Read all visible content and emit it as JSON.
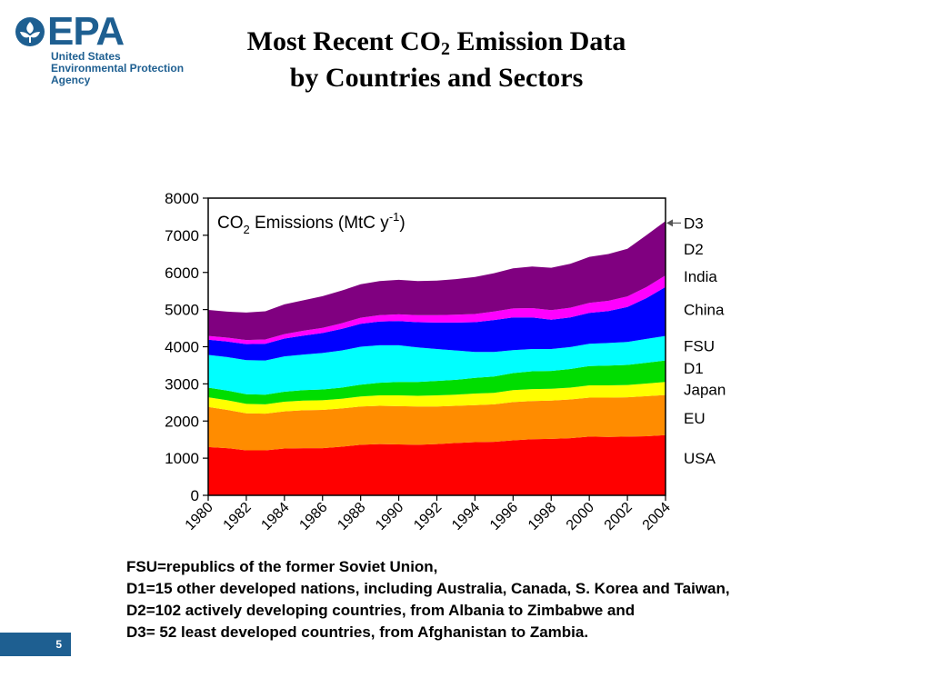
{
  "logo": {
    "wordmark": "EPA",
    "line1": "United States",
    "line2": "Environmental Protection",
    "line3": "Agency",
    "color": "#1e5f91"
  },
  "slide": {
    "title_line1_pre": "Most Recent CO",
    "title_line1_sub": "2",
    "title_line1_post": " Emission Data",
    "title_line2": "by Countries and Sectors",
    "page_number": "5"
  },
  "notes": [
    "FSU=republics of the former Soviet Union,",
    "D1=15 other developed nations, including Australia, Canada, S. Korea and Taiwan,",
    "D2=102 actively developing countries, from Albania to Zimbabwe and",
    "D3= 52 least developed countries, from Afghanistan to Zambia."
  ],
  "chart_data": {
    "type": "area",
    "stacked": true,
    "title_main": "CO",
    "title_sub": "2",
    "title_rest": " Emissions (MtC y",
    "title_sup": "-1",
    "title_end": ")",
    "ylim": [
      0,
      8000
    ],
    "xlim": [
      1980,
      2004
    ],
    "yticks": [
      "0",
      "1000",
      "2000",
      "3000",
      "4000",
      "5000",
      "6000",
      "7000",
      "8000"
    ],
    "xticks": [
      "1980",
      "1982",
      "1984",
      "1986",
      "1988",
      "1990",
      "1992",
      "1994",
      "1996",
      "1998",
      "2000",
      "2002",
      "2004"
    ],
    "x": [
      1980,
      1981,
      1982,
      1983,
      1984,
      1985,
      1986,
      1987,
      1988,
      1989,
      1990,
      1991,
      1992,
      1993,
      1994,
      1995,
      1996,
      1997,
      1998,
      1999,
      2000,
      2001,
      2002,
      2003,
      2004
    ],
    "series": [
      {
        "name": "USA",
        "color": "#ff0000",
        "values": [
          1300,
          1270,
          1210,
          1210,
          1260,
          1270,
          1270,
          1310,
          1360,
          1380,
          1370,
          1360,
          1380,
          1410,
          1430,
          1440,
          1480,
          1510,
          1520,
          1540,
          1580,
          1570,
          1580,
          1590,
          1620
        ]
      },
      {
        "name": "EU",
        "color": "#ff8c00",
        "values": [
          1080,
          1030,
          1000,
          990,
          1000,
          1020,
          1030,
          1030,
          1030,
          1030,
          1030,
          1030,
          1010,
          1000,
          1000,
          1010,
          1030,
          1030,
          1030,
          1040,
          1050,
          1060,
          1060,
          1080,
          1080
        ]
      },
      {
        "name": "Japan",
        "color": "#ffff00",
        "values": [
          260,
          260,
          250,
          250,
          260,
          260,
          260,
          260,
          270,
          280,
          290,
          290,
          300,
          300,
          310,
          310,
          320,
          320,
          320,
          320,
          330,
          330,
          330,
          340,
          350
        ]
      },
      {
        "name": "D1",
        "color": "#00dd00",
        "values": [
          260,
          260,
          260,
          260,
          270,
          280,
          290,
          300,
          320,
          340,
          360,
          370,
          390,
          400,
          420,
          440,
          460,
          480,
          480,
          500,
          520,
          530,
          540,
          560,
          580
        ]
      },
      {
        "name": "FSU",
        "color": "#00ffff",
        "values": [
          880,
          900,
          920,
          920,
          950,
          960,
          980,
          1000,
          1020,
          1010,
          990,
          930,
          860,
          790,
          700,
          660,
          620,
          600,
          590,
          590,
          600,
          610,
          620,
          640,
          660
        ]
      },
      {
        "name": "China",
        "color": "#0000ff",
        "values": [
          410,
          420,
          430,
          450,
          480,
          510,
          540,
          580,
          620,
          640,
          650,
          680,
          710,
          750,
          800,
          860,
          880,
          850,
          790,
          800,
          830,
          860,
          940,
          1100,
          1320
        ]
      },
      {
        "name": "India",
        "color": "#ff00ff",
        "values": [
          100,
          105,
          110,
          115,
          120,
          130,
          140,
          150,
          160,
          170,
          180,
          190,
          200,
          210,
          220,
          230,
          240,
          250,
          255,
          260,
          270,
          275,
          285,
          295,
          310
        ]
      },
      {
        "name": "D2",
        "color": "#800080",
        "values": [
          700,
          700,
          740,
          760,
          800,
          820,
          850,
          880,
          900,
          920,
          930,
          920,
          930,
          960,
          1000,
          1030,
          1080,
          1120,
          1140,
          1180,
          1240,
          1260,
          1280,
          1400,
          1460
        ]
      },
      {
        "name": "D3",
        "color": "#800080",
        "values": [
          0,
          0,
          0,
          0,
          0,
          0,
          0,
          0,
          0,
          0,
          0,
          0,
          0,
          0,
          0,
          0,
          0,
          0,
          0,
          0,
          0,
          0,
          0,
          0,
          0
        ]
      }
    ],
    "legend_placement": "right",
    "grid": false
  }
}
